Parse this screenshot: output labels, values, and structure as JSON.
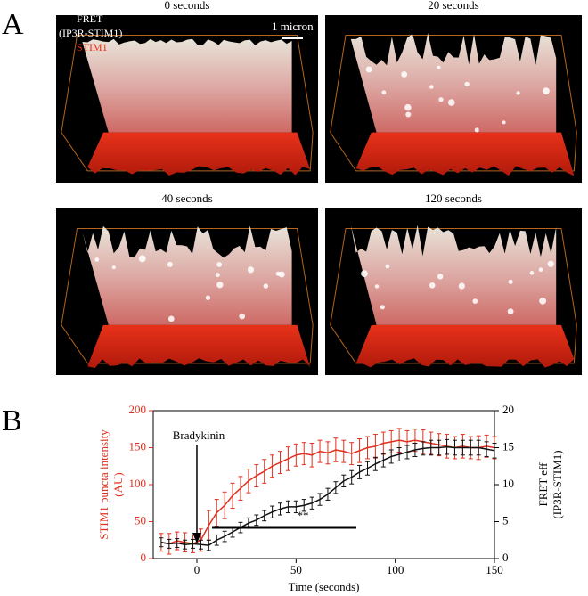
{
  "panel_a": {
    "label": "A",
    "frames": [
      "0 seconds",
      "20 seconds",
      "40 seconds",
      "120 seconds"
    ],
    "scale_bar": "1 micron",
    "legend": [
      "FRET",
      "(IP3R-STIM1)",
      "STIM1"
    ]
  },
  "chart_data": {
    "type": "line",
    "panel_label": "B",
    "xlabel": "Time (seconds)",
    "ylabel": [
      "STIM1 puncta intensity",
      "(AU)"
    ],
    "y2label": [
      "FRET eff",
      "(IP3R-STIM1)"
    ],
    "annotations": [
      "Bradykinin",
      "**"
    ],
    "x": [
      -18,
      -14,
      -10,
      -6,
      -2,
      2,
      6,
      10,
      14,
      18,
      22,
      26,
      30,
      34,
      38,
      42,
      46,
      50,
      54,
      58,
      62,
      66,
      70,
      74,
      78,
      82,
      86,
      90,
      94,
      98,
      102,
      106,
      110,
      114,
      118,
      122,
      126,
      130,
      134,
      138,
      142,
      146,
      150
    ],
    "xlim": [
      -22,
      150
    ],
    "xticks": [
      0,
      50,
      100,
      150
    ],
    "ylim": [
      0,
      200
    ],
    "yticks": [
      0,
      50,
      100,
      150,
      200
    ],
    "y2lim": [
      0,
      20
    ],
    "y2ticks": [
      0,
      5,
      10,
      15,
      20
    ],
    "series": [
      {
        "color": "#e0301e",
        "values": [
          22,
          20,
          24,
          22,
          20,
          25,
          45,
          62,
          72,
          85,
          95,
          105,
          112,
          118,
          125,
          130,
          135,
          140,
          142,
          140,
          145,
          143,
          147,
          145,
          142,
          146,
          150,
          152,
          156,
          158,
          160,
          158,
          160,
          158,
          156,
          154,
          152,
          150,
          152,
          150,
          150,
          152,
          150
        ],
        "errors": [
          12,
          14,
          12,
          13,
          12,
          15,
          20,
          18,
          18,
          17,
          16,
          16,
          15,
          16,
          15,
          15,
          16,
          15,
          15,
          16,
          15,
          15,
          16,
          15,
          15,
          16,
          15,
          16,
          15,
          15,
          16,
          15,
          15,
          16,
          15,
          15,
          16,
          15,
          16,
          15,
          16,
          15,
          15
        ]
      },
      {
        "color": "#111111",
        "axis": "y2",
        "values": [
          2.2,
          2,
          2.1,
          1.9,
          2,
          1.9,
          1.8,
          2.5,
          3,
          3.6,
          4.2,
          4.8,
          5.2,
          5.8,
          6.3,
          6.7,
          7,
          7,
          7.2,
          7.5,
          8,
          8.7,
          9.6,
          10.5,
          11,
          11.7,
          12.2,
          12.8,
          13.3,
          13.8,
          14.1,
          14.4,
          14.7,
          14.9,
          15,
          15,
          15.1,
          15,
          15,
          15,
          15,
          14.8,
          14.6
        ],
        "errors": [
          0.6,
          0.6,
          0.6,
          0.6,
          0.6,
          0.6,
          0.7,
          0.7,
          0.7,
          0.7,
          0.7,
          0.7,
          0.7,
          0.7,
          0.8,
          0.8,
          0.8,
          0.8,
          0.8,
          0.8,
          0.8,
          0.8,
          0.8,
          0.8,
          0.9,
          0.9,
          0.9,
          0.9,
          0.9,
          0.9,
          0.9,
          0.9,
          0.9,
          0.9,
          1,
          1,
          1,
          1,
          1,
          1,
          1,
          1,
          1
        ]
      }
    ]
  }
}
